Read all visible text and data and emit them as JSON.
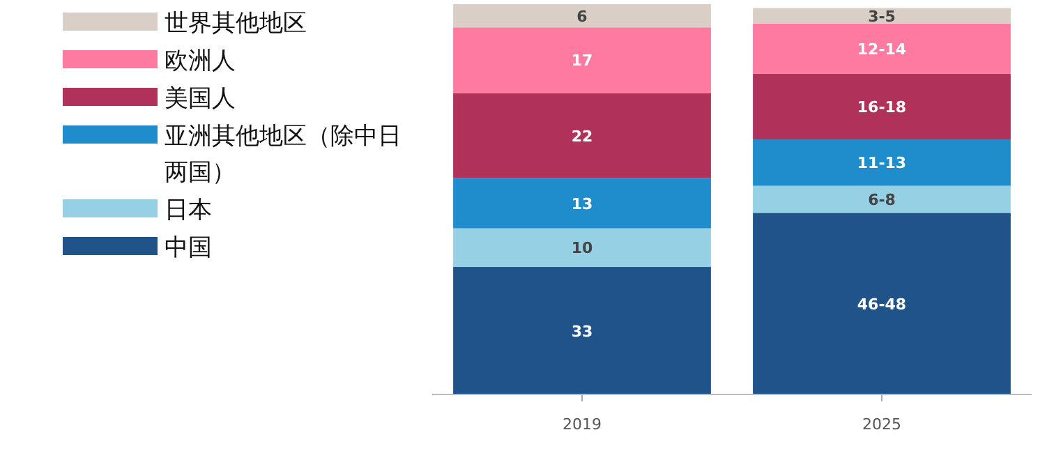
{
  "chart_data": {
    "type": "bar",
    "stacked": true,
    "categories": [
      "2019",
      "2025"
    ],
    "legend": "left",
    "series": [
      {
        "name": "中国",
        "color": "#1f538a",
        "values": [
          33,
          47
        ],
        "value_labels": [
          "33",
          "46-48"
        ]
      },
      {
        "name": "日本",
        "color": "#96d0e4",
        "values": [
          10,
          7
        ],
        "value_labels": [
          "10",
          "6-8"
        ]
      },
      {
        "name": "亚洲其他地区（除中日两国）",
        "color": "#1f8ccc",
        "values": [
          13,
          12
        ],
        "value_labels": [
          "13",
          "11-13"
        ]
      },
      {
        "name": "美国人",
        "color": "#b0325a",
        "values": [
          22,
          17
        ],
        "value_labels": [
          "22",
          "16-18"
        ]
      },
      {
        "name": "欧洲人",
        "color": "#ff7aa0",
        "values": [
          17,
          13
        ],
        "value_labels": [
          "17",
          "12-14"
        ]
      },
      {
        "name": "世界其他地区",
        "color": "#d9cfc6",
        "values": [
          6,
          4
        ],
        "value_labels": [
          "6",
          "3-5"
        ]
      }
    ]
  }
}
